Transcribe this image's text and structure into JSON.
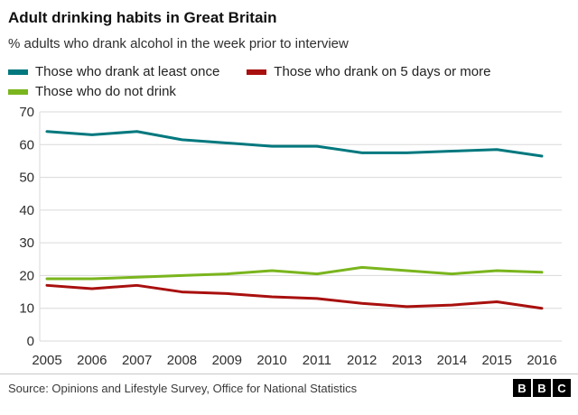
{
  "header": {
    "title": "Adult drinking habits in Great Britain",
    "subtitle": "% adults who drank alcohol in the week prior to interview"
  },
  "legend": [
    {
      "label": "Those who drank at least once",
      "color": "#00787e"
    },
    {
      "label": "Those who drank on 5 days or more",
      "color": "#a8100e"
    },
    {
      "label": "Those who do not drink",
      "color": "#7ab51d"
    }
  ],
  "chart_data": {
    "type": "line",
    "x": [
      2005,
      2006,
      2007,
      2008,
      2009,
      2010,
      2011,
      2012,
      2013,
      2014,
      2015,
      2016
    ],
    "series": [
      {
        "name": "Those who drank at least once",
        "color": "#00787e",
        "values": [
          64,
          63,
          64,
          61.5,
          60.5,
          59.5,
          59.5,
          57.5,
          57.5,
          58,
          58.5,
          56.5
        ]
      },
      {
        "name": "Those who drank on 5 days or more",
        "color": "#a8100e",
        "values": [
          17,
          16,
          17,
          15,
          14.5,
          13.5,
          13,
          11.5,
          10.5,
          11,
          12,
          10
        ]
      },
      {
        "name": "Those who do not drink",
        "color": "#7ab51d",
        "values": [
          19,
          19,
          19.5,
          20,
          20.5,
          21.5,
          20.5,
          22.5,
          21.5,
          20.5,
          21.5,
          21
        ]
      }
    ],
    "ylim": [
      0,
      70
    ],
    "yticks": [
      0,
      10,
      20,
      30,
      40,
      50,
      60,
      70
    ],
    "grid": true,
    "legend_position": "top",
    "grid_color": "#d9d9d9",
    "tick_color": "#2e2e2e"
  },
  "footer": {
    "source": "Source: Opinions and Lifestyle Survey, Office for National Statistics",
    "logo_letters": [
      "B",
      "B",
      "C"
    ]
  }
}
